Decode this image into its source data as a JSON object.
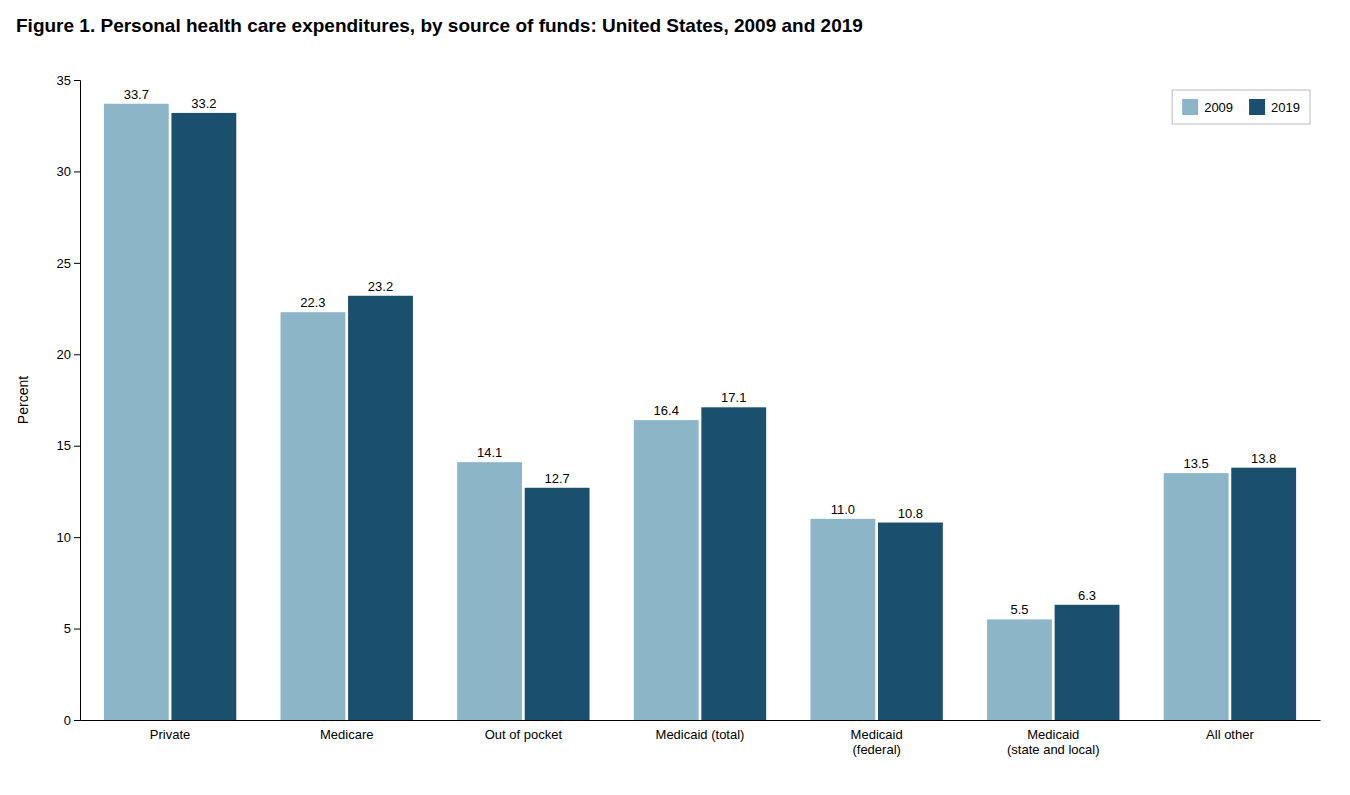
{
  "chart_data": {
    "type": "bar",
    "title": "Figure 1. Personal health care expenditures, by source of funds: United States, 2009 and 2019",
    "categories": [
      "Private",
      "Medicare",
      "Out of pocket",
      "Medicaid (total)",
      "Medicaid\n(federal)",
      "Medicaid\n(state and local)",
      "All other"
    ],
    "series": [
      {
        "name": "2009",
        "color": "#8cb5c8",
        "values": [
          33.7,
          22.3,
          14.1,
          16.4,
          11.0,
          5.5,
          13.5
        ],
        "value_labels": [
          "33.7",
          "22.3",
          "14.1",
          "16.4",
          "11.0",
          "5.5",
          "13.5"
        ]
      },
      {
        "name": "2019",
        "color": "#1b4f6e",
        "values": [
          33.2,
          23.2,
          12.7,
          17.1,
          10.8,
          6.3,
          13.8
        ],
        "value_labels": [
          "33.2",
          "23.2",
          "12.7",
          "17.1",
          "10.8",
          "6.3",
          "13.8"
        ]
      }
    ],
    "ylabel": "Percent",
    "ylim": [
      0,
      35
    ],
    "yticks": [
      0,
      5,
      10,
      15,
      20,
      25,
      30,
      35
    ],
    "data_labels": true,
    "legend": "upper right",
    "grid": false
  }
}
